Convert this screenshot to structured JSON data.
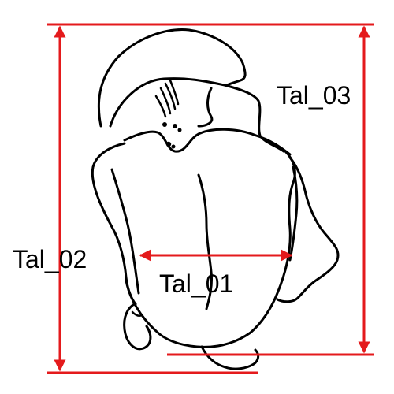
{
  "diagram": {
    "labels": {
      "tal_01": "Tal_01",
      "tal_02": "Tal_02",
      "tal_03": "Tal_03"
    },
    "colors": {
      "measurement_line": "#e41a1c",
      "outline": "#000000",
      "background": "#ffffff"
    }
  }
}
